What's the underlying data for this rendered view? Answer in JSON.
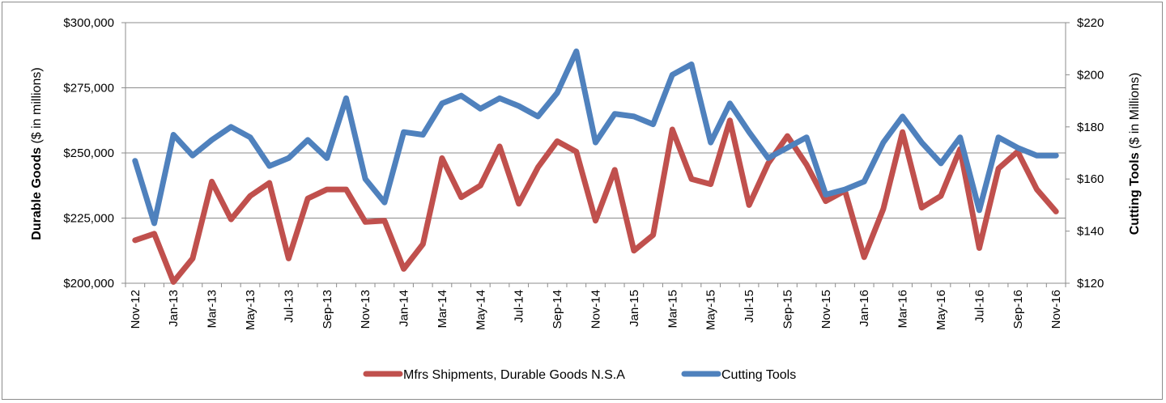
{
  "chart_data": {
    "type": "line",
    "categories": [
      "Nov-12",
      "Dec-12",
      "Jan-13",
      "Feb-13",
      "Mar-13",
      "Apr-13",
      "May-13",
      "Jun-13",
      "Jul-13",
      "Aug-13",
      "Sep-13",
      "Oct-13",
      "Nov-13",
      "Dec-13",
      "Jan-14",
      "Feb-14",
      "Mar-14",
      "Apr-14",
      "May-14",
      "Jun-14",
      "Jul-14",
      "Aug-14",
      "Sep-14",
      "Oct-14",
      "Nov-14",
      "Dec-14",
      "Jan-15",
      "Feb-15",
      "Mar-15",
      "Apr-15",
      "May-15",
      "Jun-15",
      "Jul-15",
      "Aug-15",
      "Sep-15",
      "Oct-15",
      "Nov-15",
      "Dec-15",
      "Jan-16",
      "Feb-16",
      "Mar-16",
      "Apr-16",
      "May-16",
      "Jun-16",
      "Jul-16",
      "Aug-16",
      "Sep-16",
      "Oct-16",
      "Nov-16"
    ],
    "tick_labels": [
      "Nov-12",
      "Jan-13",
      "Mar-13",
      "May-13",
      "Jul-13",
      "Sep-13",
      "Nov-13",
      "Jan-14",
      "Mar-14",
      "May-14",
      "Jul-14",
      "Sep-14",
      "Nov-14",
      "Jan-15",
      "Mar-15",
      "May-15",
      "Jul-15",
      "Sep-15",
      "Nov-15",
      "Jan-16",
      "Mar-16",
      "May-16",
      "Jul-16",
      "Sep-16",
      "Nov-16"
    ],
    "series": [
      {
        "name": "Mfrs Shipments, Durable Goods N.S.A",
        "axis": "left",
        "color": "#C0504D",
        "values": [
          216500,
          219000,
          200500,
          209500,
          239000,
          224500,
          233500,
          238500,
          209500,
          232500,
          236000,
          236000,
          223500,
          224000,
          205500,
          215000,
          248000,
          233000,
          237500,
          252500,
          230500,
          244500,
          254500,
          250500,
          224000,
          243500,
          212500,
          218500,
          259000,
          240000,
          238000,
          262500,
          230000,
          246000,
          256500,
          245500,
          231500,
          235500,
          210000,
          228500,
          258000,
          229000,
          233500,
          251500,
          213500,
          244000,
          250500,
          236000,
          227500
        ]
      },
      {
        "name": "Cutting Tools",
        "axis": "right",
        "color": "#4F81BD",
        "values": [
          167,
          143,
          177,
          169,
          175,
          180,
          176,
          165,
          168,
          175,
          168,
          191,
          160,
          151,
          178,
          177,
          189,
          192,
          187,
          191,
          188,
          184,
          193,
          209,
          174,
          185,
          184,
          181,
          200,
          204,
          174,
          189,
          178,
          168,
          172,
          176,
          154,
          156,
          159,
          174,
          184,
          174,
          166,
          176,
          148,
          176,
          172,
          169,
          169
        ]
      }
    ],
    "yaxis_left": {
      "label": "Durable Goods",
      "label_unit": " ($ in millions)",
      "ylim": [
        200000,
        300000
      ],
      "ticks": [
        "$200,000",
        "$225,000",
        "$250,000",
        "$275,000",
        "$300,000"
      ]
    },
    "yaxis_right": {
      "label": "Cutting Tools",
      "label_unit": " ($ in Millions)",
      "ylim": [
        120,
        220
      ],
      "ticks": [
        "$120",
        "$140",
        "$160",
        "$180",
        "$200",
        "$220"
      ]
    },
    "grid": true,
    "legend": "bottom-center"
  }
}
